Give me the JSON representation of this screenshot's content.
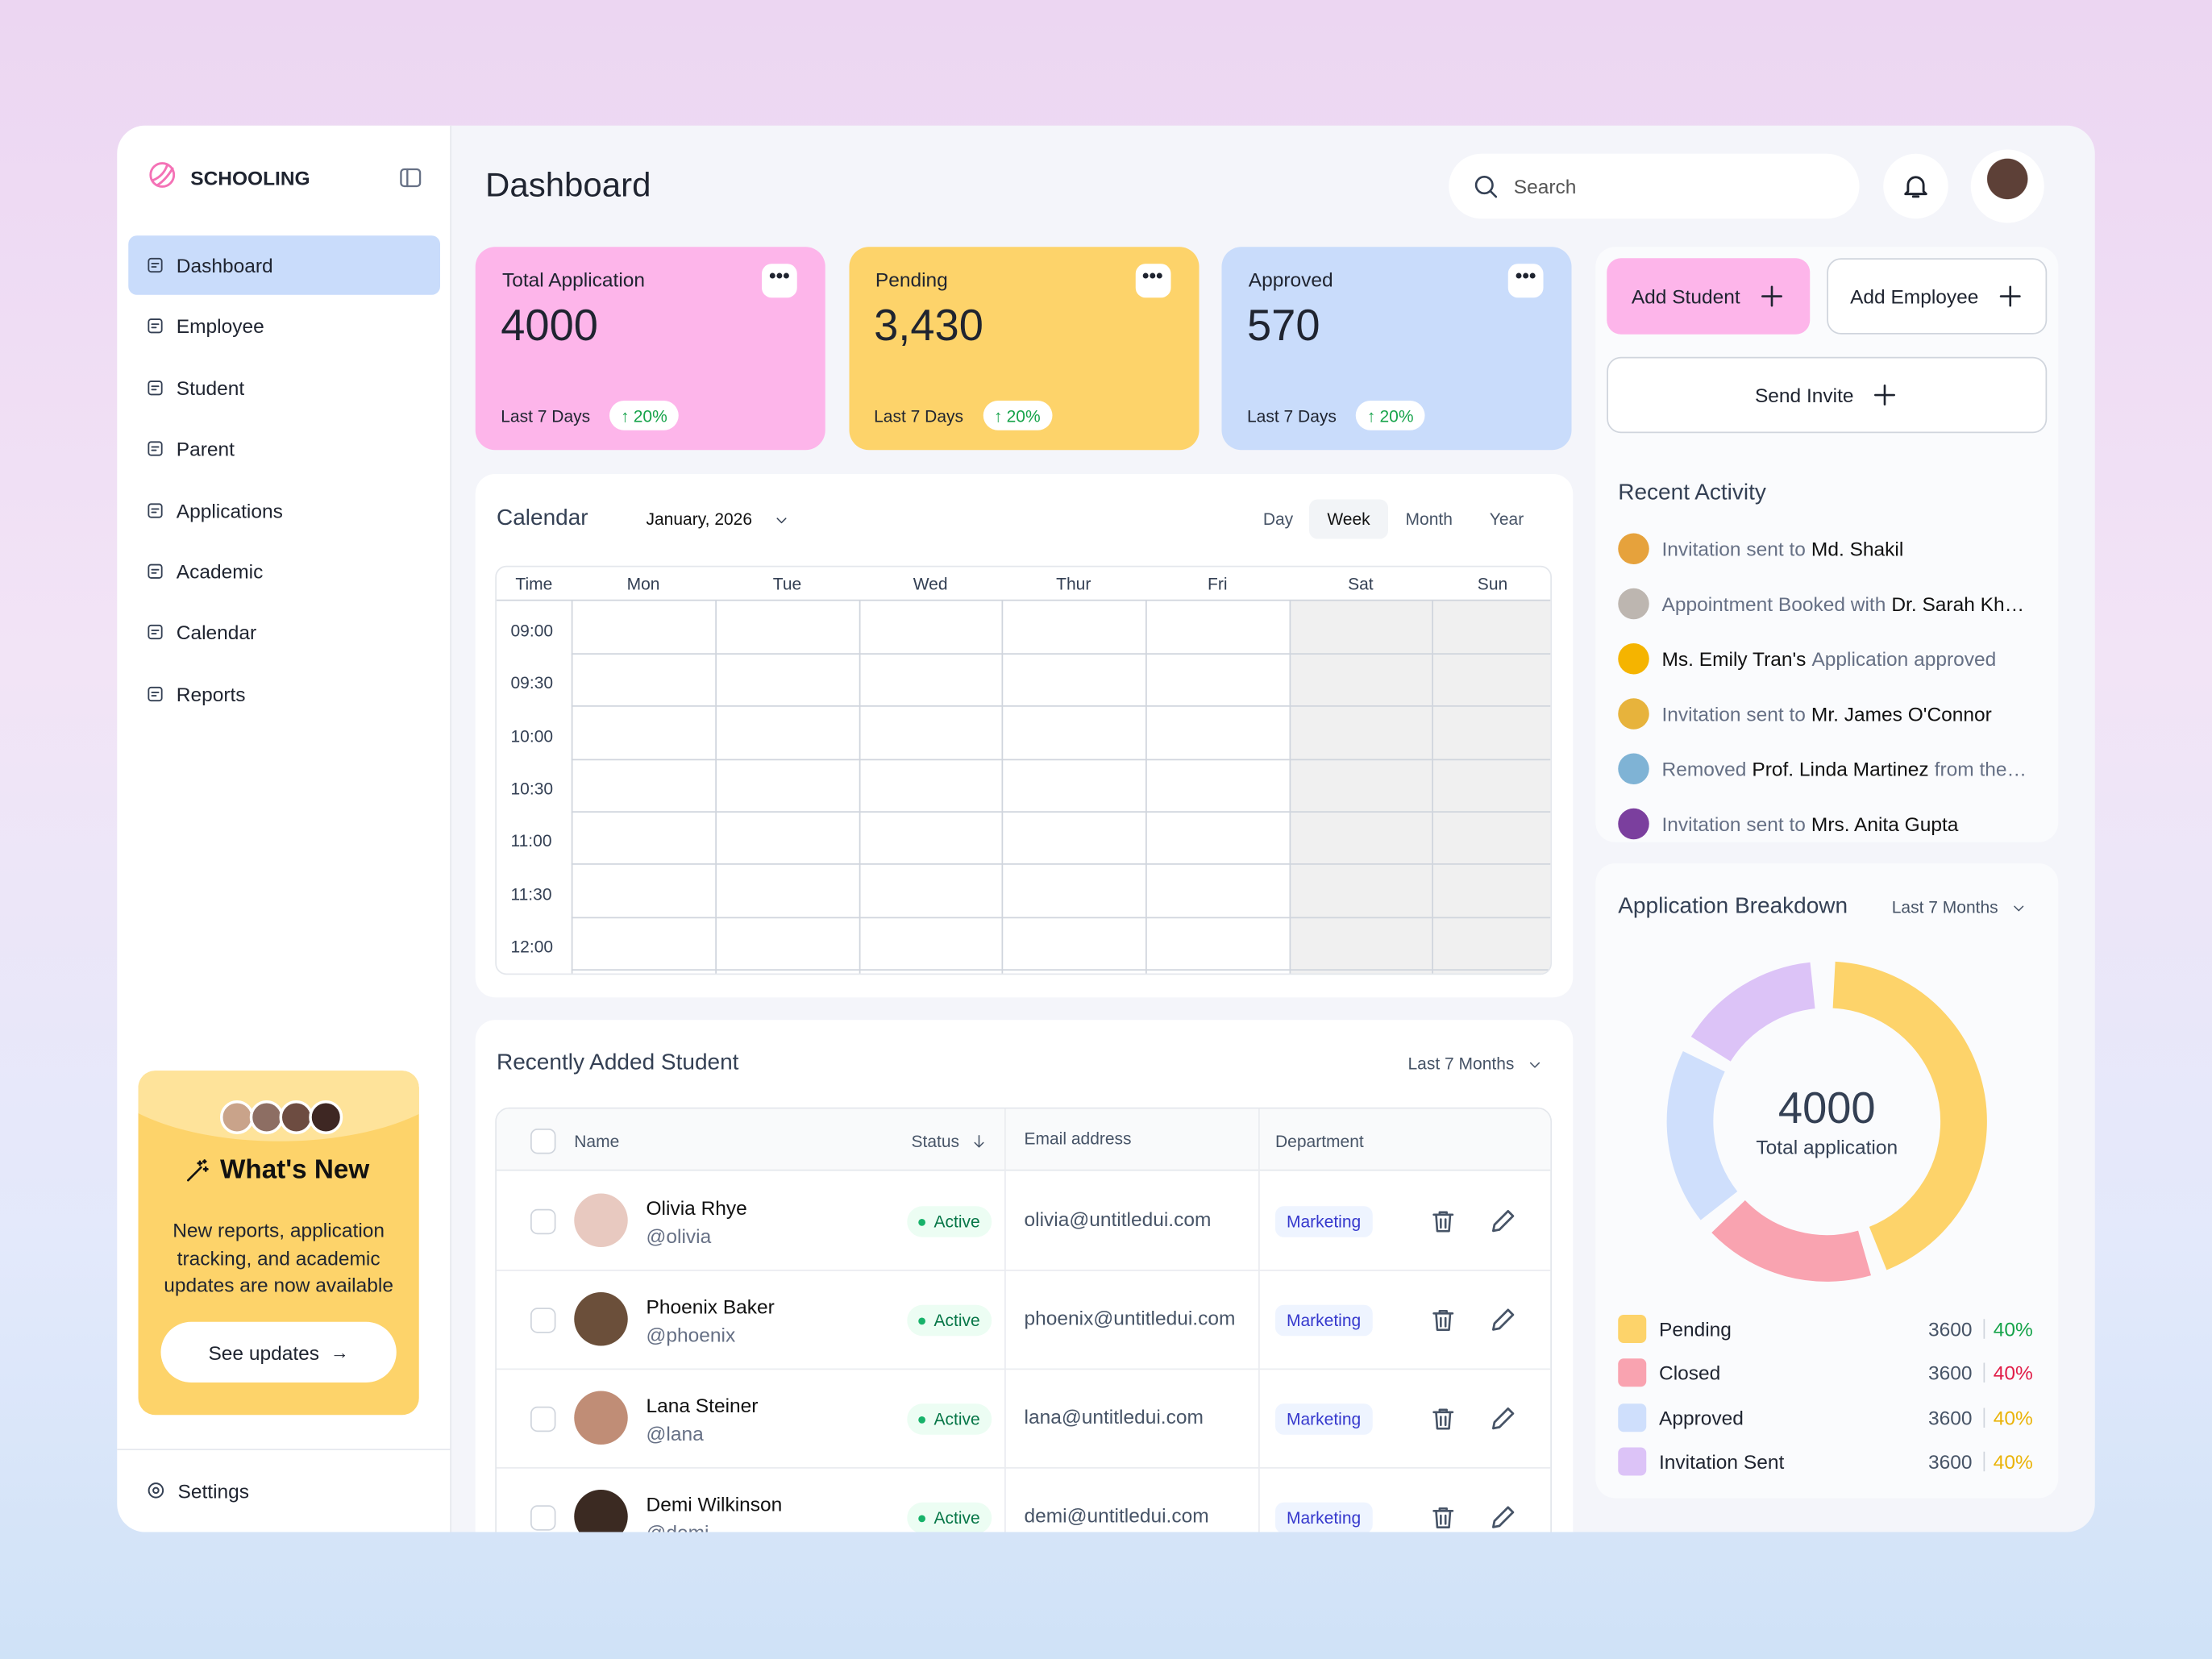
{
  "brand": "SCHOOLING",
  "nav": [
    "Dashboard",
    "Employee",
    "Student",
    "Parent",
    "Applications",
    "Academic",
    "Calendar",
    "Reports"
  ],
  "settings": "Settings",
  "promo": {
    "title": "What's New",
    "text": "New reports, application tracking, and academic updates are now available",
    "button": "See updates"
  },
  "header": {
    "title": "Dashboard",
    "search": "Search"
  },
  "stats": [
    {
      "label": "Total Application",
      "value": "4000",
      "period": "Last 7 Days",
      "change": "20%",
      "color": "#fdb5ea"
    },
    {
      "label": "Pending",
      "value": "3,430",
      "period": "Last 7 Days",
      "change": "20%",
      "color": "#fdd36a"
    },
    {
      "label": "Approved",
      "value": "570",
      "period": "Last 7 Days",
      "change": "20%",
      "color": "#c9dcfb"
    }
  ],
  "actions": [
    "Add Student",
    "Add Employee",
    "Send Invite"
  ],
  "calendar": {
    "title": "Calendar",
    "month": "January, 2026",
    "views": [
      "Day",
      "Week",
      "Month",
      "Year"
    ],
    "active_view": 1,
    "columns": [
      "Time",
      "Mon",
      "Tue",
      "Wed",
      "Thur",
      "Fri",
      "Sat",
      "Sun"
    ],
    "times": [
      "09:00",
      "09:30",
      "10:00",
      "10:30",
      "11:00",
      "11:30",
      "12:00"
    ]
  },
  "students": {
    "title": "Recently Added Student",
    "filter": "Last 7 Months",
    "columns": [
      "Name",
      "Status",
      "Email address",
      "Department"
    ],
    "rows": [
      {
        "name": "Olivia Rhye",
        "handle": "@olivia",
        "status": "Active",
        "email": "olivia@untitledui.com",
        "department": "Marketing"
      },
      {
        "name": "Phoenix Baker",
        "handle": "@phoenix",
        "status": "Active",
        "email": "phoenix@untitledui.com",
        "department": "Marketing"
      },
      {
        "name": "Lana Steiner",
        "handle": "@lana",
        "status": "Active",
        "email": "lana@untitledui.com",
        "department": "Marketing"
      },
      {
        "name": "Demi Wilkinson",
        "handle": "@demi",
        "status": "Active",
        "email": "demi@untitledui.com",
        "department": "Marketing"
      }
    ]
  },
  "activity": {
    "title": "Recent Activity",
    "items": [
      [
        {
          "text": "Invitation sent to",
          "strong": false
        },
        {
          "text": "Md. Shakil",
          "strong": true
        }
      ],
      [
        {
          "text": "Appointment Booked with",
          "strong": false
        },
        {
          "text": "Dr. Sarah Kh…",
          "strong": true
        }
      ],
      [
        {
          "text": "Ms. Emily Tran's",
          "strong": true
        },
        {
          "text": "Application approved",
          "strong": false
        }
      ],
      [
        {
          "text": "Invitation sent to",
          "strong": false
        },
        {
          "text": "Mr. James O'Connor",
          "strong": true
        }
      ],
      [
        {
          "text": "Removed",
          "strong": false
        },
        {
          "text": "Prof. Linda Martinez",
          "strong": true
        },
        {
          "text": "from the…",
          "strong": false
        }
      ],
      [
        {
          "text": "Invitation sent to",
          "strong": false
        },
        {
          "text": "Mrs. Anita Gupta",
          "strong": true
        }
      ]
    ]
  },
  "breakdown": {
    "title": "Application Breakdown",
    "filter": "Last 7 Months",
    "total": "4000",
    "total_label": "Total application",
    "legend": [
      {
        "name": "Pending",
        "count": "3600",
        "percent": "40%",
        "color": "#fdd36a",
        "percent_color": "#16a34a"
      },
      {
        "name": "Closed",
        "count": "3600",
        "percent": "40%",
        "color": "#f9a3b0",
        "percent_color": "#e11d48"
      },
      {
        "name": "Approved",
        "count": "3600",
        "percent": "40%",
        "color": "#cfdffc",
        "percent_color": "#eab308"
      },
      {
        "name": "Invitation Sent",
        "count": "3600",
        "percent": "40%",
        "color": "#dcc3f7",
        "percent_color": "#eab308"
      }
    ]
  }
}
